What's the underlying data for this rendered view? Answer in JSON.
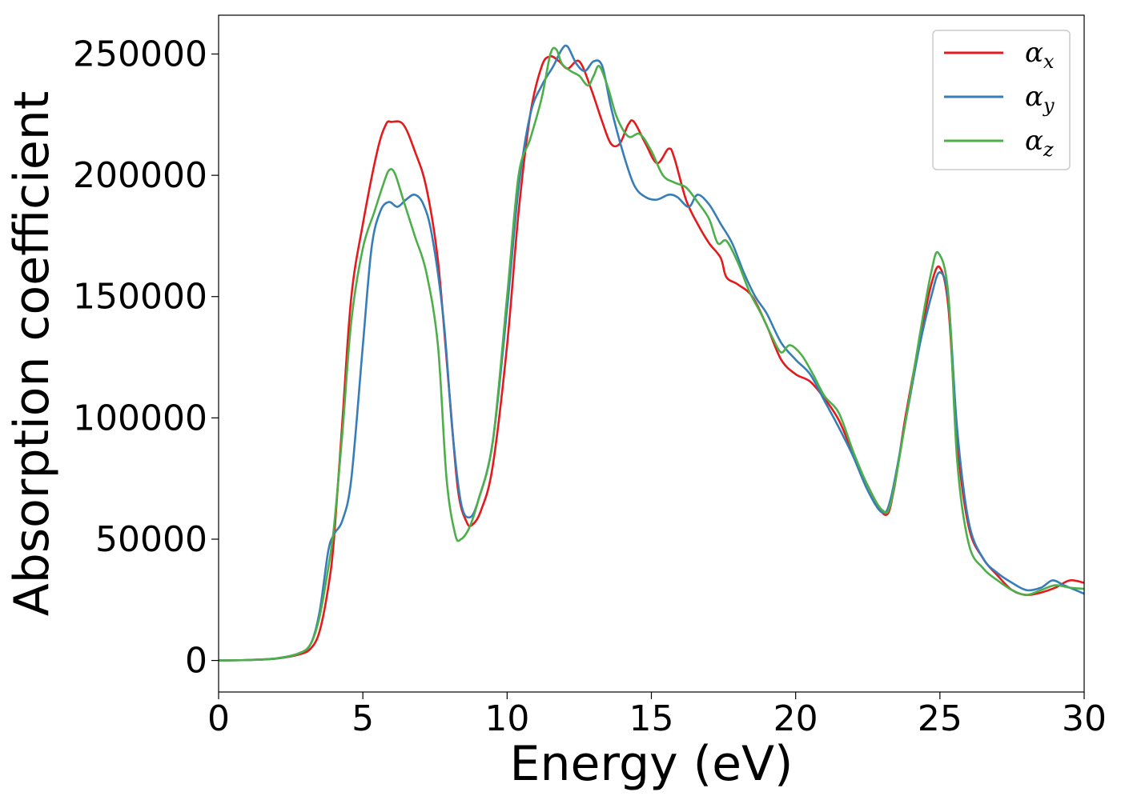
{
  "chart_data": {
    "type": "line",
    "title": "",
    "xlabel": "Energy (eV)",
    "ylabel": "Absorption coefficient",
    "xlim": [
      0,
      30
    ],
    "ylim": [
      -13000,
      266000
    ],
    "xticks": [
      0,
      5,
      10,
      15,
      20,
      25,
      30
    ],
    "xtick_labels": [
      "0",
      "5",
      "10",
      "15",
      "20",
      "25",
      "30"
    ],
    "yticks": [
      0,
      50000,
      100000,
      150000,
      200000,
      250000
    ],
    "ytick_labels": [
      "0",
      "50000",
      "100000",
      "150000",
      "200000",
      "250000"
    ],
    "grid": false,
    "legend_position": "top-right",
    "series": [
      {
        "name": "α",
        "name_subscript": "x",
        "color": "#e41a1c",
        "points": [
          [
            0,
            0
          ],
          [
            1,
            200
          ],
          [
            2,
            800
          ],
          [
            2.8,
            2500
          ],
          [
            3.2,
            5000
          ],
          [
            3.5,
            12000
          ],
          [
            3.8,
            30000
          ],
          [
            4.0,
            50000
          ],
          [
            4.3,
            100000
          ],
          [
            4.6,
            150000
          ],
          [
            5.0,
            180000
          ],
          [
            5.5,
            210000
          ],
          [
            5.8,
            221000
          ],
          [
            6.0,
            222000
          ],
          [
            6.4,
            221000
          ],
          [
            6.8,
            210000
          ],
          [
            7.2,
            195000
          ],
          [
            7.6,
            165000
          ],
          [
            8.0,
            110000
          ],
          [
            8.3,
            70000
          ],
          [
            8.6,
            57000
          ],
          [
            8.8,
            56000
          ],
          [
            9.1,
            62000
          ],
          [
            9.5,
            80000
          ],
          [
            10.0,
            130000
          ],
          [
            10.4,
            185000
          ],
          [
            10.8,
            225000
          ],
          [
            11.2,
            245000
          ],
          [
            11.5,
            249000
          ],
          [
            11.8,
            247000
          ],
          [
            12.1,
            244000
          ],
          [
            12.5,
            247000
          ],
          [
            12.9,
            236000
          ],
          [
            13.3,
            222000
          ],
          [
            13.6,
            213000
          ],
          [
            13.9,
            213000
          ],
          [
            14.2,
            221000
          ],
          [
            14.4,
            222000
          ],
          [
            14.8,
            213000
          ],
          [
            15.2,
            205000
          ],
          [
            15.6,
            211000
          ],
          [
            15.8,
            207000
          ],
          [
            16.2,
            190000
          ],
          [
            16.6,
            180000
          ],
          [
            17.0,
            172000
          ],
          [
            17.4,
            166000
          ],
          [
            17.6,
            158000
          ],
          [
            18.0,
            155000
          ],
          [
            18.5,
            150000
          ],
          [
            19.0,
            138000
          ],
          [
            19.5,
            124000
          ],
          [
            20.0,
            118000
          ],
          [
            20.5,
            115000
          ],
          [
            21.0,
            108000
          ],
          [
            21.5,
            99000
          ],
          [
            22.0,
            85000
          ],
          [
            22.5,
            72000
          ],
          [
            23.1,
            60000
          ],
          [
            23.4,
            70000
          ],
          [
            23.8,
            100000
          ],
          [
            24.3,
            132000
          ],
          [
            24.7,
            155000
          ],
          [
            25.0,
            162000
          ],
          [
            25.3,
            145000
          ],
          [
            25.6,
            90000
          ],
          [
            26.0,
            55000
          ],
          [
            26.5,
            42000
          ],
          [
            27.0,
            35000
          ],
          [
            27.5,
            29000
          ],
          [
            28.0,
            27000
          ],
          [
            28.5,
            28000
          ],
          [
            29.0,
            30000
          ],
          [
            29.5,
            33000
          ],
          [
            30.0,
            32000
          ]
        ]
      },
      {
        "name": "α",
        "name_subscript": "y",
        "color": "#377eb8",
        "points": [
          [
            0,
            0
          ],
          [
            1,
            200
          ],
          [
            2,
            800
          ],
          [
            2.8,
            3000
          ],
          [
            3.2,
            7000
          ],
          [
            3.5,
            20000
          ],
          [
            3.8,
            45000
          ],
          [
            4.0,
            52000
          ],
          [
            4.3,
            58000
          ],
          [
            4.6,
            75000
          ],
          [
            5.0,
            130000
          ],
          [
            5.3,
            170000
          ],
          [
            5.6,
            185000
          ],
          [
            5.9,
            189000
          ],
          [
            6.2,
            187000
          ],
          [
            6.5,
            190000
          ],
          [
            6.8,
            192000
          ],
          [
            7.1,
            188000
          ],
          [
            7.4,
            175000
          ],
          [
            7.8,
            140000
          ],
          [
            8.1,
            95000
          ],
          [
            8.4,
            65000
          ],
          [
            8.7,
            59000
          ],
          [
            9.0,
            66000
          ],
          [
            9.5,
            90000
          ],
          [
            10.0,
            145000
          ],
          [
            10.4,
            195000
          ],
          [
            10.8,
            225000
          ],
          [
            11.2,
            237000
          ],
          [
            11.6,
            245000
          ],
          [
            11.9,
            252000
          ],
          [
            12.1,
            253000
          ],
          [
            12.4,
            246000
          ],
          [
            12.7,
            243000
          ],
          [
            13.0,
            247000
          ],
          [
            13.3,
            245000
          ],
          [
            13.6,
            228000
          ],
          [
            14.0,
            210000
          ],
          [
            14.4,
            196000
          ],
          [
            14.8,
            191000
          ],
          [
            15.2,
            190000
          ],
          [
            15.6,
            192000
          ],
          [
            15.9,
            191000
          ],
          [
            16.3,
            187000
          ],
          [
            16.6,
            192000
          ],
          [
            17.0,
            188000
          ],
          [
            17.4,
            180000
          ],
          [
            17.8,
            172000
          ],
          [
            18.2,
            160000
          ],
          [
            18.6,
            150000
          ],
          [
            19.0,
            143000
          ],
          [
            19.5,
            131000
          ],
          [
            20.0,
            124000
          ],
          [
            20.5,
            118000
          ],
          [
            21.0,
            107000
          ],
          [
            21.5,
            96000
          ],
          [
            22.0,
            84000
          ],
          [
            22.5,
            70000
          ],
          [
            23.0,
            61000
          ],
          [
            23.3,
            67000
          ],
          [
            23.8,
            98000
          ],
          [
            24.3,
            130000
          ],
          [
            24.7,
            150000
          ],
          [
            25.0,
            160000
          ],
          [
            25.3,
            148000
          ],
          [
            25.6,
            95000
          ],
          [
            26.0,
            57000
          ],
          [
            26.5,
            42000
          ],
          [
            27.0,
            36000
          ],
          [
            27.5,
            32000
          ],
          [
            28.0,
            29000
          ],
          [
            28.5,
            30000
          ],
          [
            28.9,
            33000
          ],
          [
            29.3,
            31000
          ],
          [
            29.7,
            29000
          ],
          [
            30.0,
            27500
          ]
        ]
      },
      {
        "name": "α",
        "name_subscript": "z",
        "color": "#4daf4a",
        "points": [
          [
            0,
            0
          ],
          [
            1,
            200
          ],
          [
            2,
            900
          ],
          [
            2.8,
            3000
          ],
          [
            3.2,
            7000
          ],
          [
            3.5,
            18000
          ],
          [
            3.8,
            38000
          ],
          [
            4.0,
            55000
          ],
          [
            4.3,
            95000
          ],
          [
            4.6,
            140000
          ],
          [
            5.0,
            170000
          ],
          [
            5.4,
            185000
          ],
          [
            5.7,
            196000
          ],
          [
            5.9,
            202000
          ],
          [
            6.1,
            201000
          ],
          [
            6.4,
            190000
          ],
          [
            6.8,
            175000
          ],
          [
            7.2,
            160000
          ],
          [
            7.6,
            130000
          ],
          [
            7.9,
            75000
          ],
          [
            8.2,
            52000
          ],
          [
            8.4,
            50000
          ],
          [
            8.7,
            55000
          ],
          [
            9.0,
            66000
          ],
          [
            9.5,
            90000
          ],
          [
            10.0,
            150000
          ],
          [
            10.4,
            200000
          ],
          [
            10.8,
            215000
          ],
          [
            11.2,
            232000
          ],
          [
            11.5,
            250000
          ],
          [
            11.7,
            252000
          ],
          [
            11.9,
            246000
          ],
          [
            12.2,
            243000
          ],
          [
            12.5,
            241000
          ],
          [
            12.8,
            237000
          ],
          [
            13.0,
            241000
          ],
          [
            13.2,
            245000
          ],
          [
            13.5,
            236000
          ],
          [
            13.8,
            224000
          ],
          [
            14.2,
            216000
          ],
          [
            14.6,
            217000
          ],
          [
            15.0,
            210000
          ],
          [
            15.4,
            200000
          ],
          [
            15.8,
            197000
          ],
          [
            16.2,
            195000
          ],
          [
            16.6,
            189000
          ],
          [
            17.0,
            182000
          ],
          [
            17.3,
            172000
          ],
          [
            17.6,
            173000
          ],
          [
            18.0,
            164000
          ],
          [
            18.4,
            152000
          ],
          [
            18.8,
            143000
          ],
          [
            19.2,
            133000
          ],
          [
            19.5,
            127000
          ],
          [
            19.8,
            130000
          ],
          [
            20.2,
            126000
          ],
          [
            20.6,
            118000
          ],
          [
            21.0,
            109000
          ],
          [
            21.5,
            102000
          ],
          [
            22.0,
            86000
          ],
          [
            22.5,
            72000
          ],
          [
            23.0,
            62000
          ],
          [
            23.3,
            65000
          ],
          [
            23.8,
            98000
          ],
          [
            24.3,
            134000
          ],
          [
            24.7,
            160000
          ],
          [
            24.95,
            168000
          ],
          [
            25.3,
            150000
          ],
          [
            25.6,
            82000
          ],
          [
            26.0,
            48000
          ],
          [
            26.5,
            38000
          ],
          [
            27.0,
            33000
          ],
          [
            27.5,
            29000
          ],
          [
            28.0,
            27000
          ],
          [
            28.5,
            29000
          ],
          [
            29.0,
            31000
          ],
          [
            29.5,
            30000
          ],
          [
            30.0,
            29500
          ]
        ]
      }
    ]
  }
}
